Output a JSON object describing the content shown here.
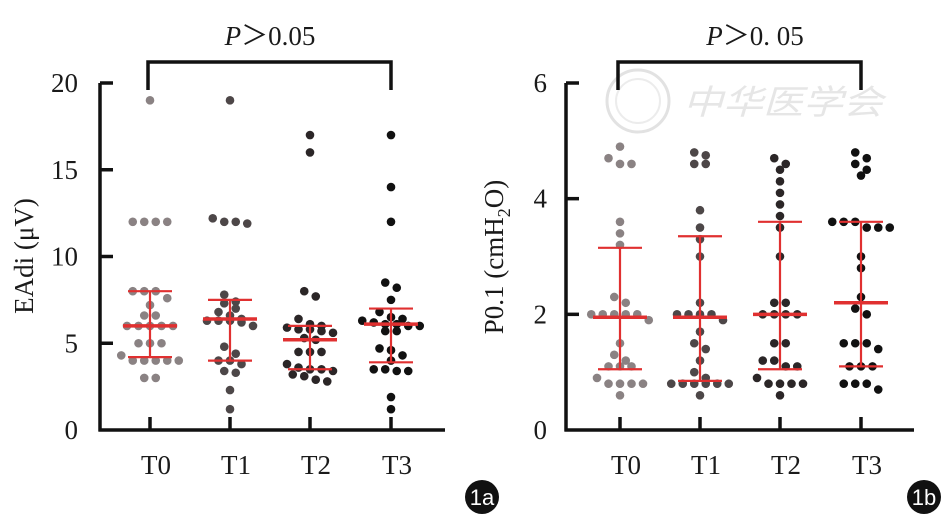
{
  "figure": {
    "watermark": "中华医学会",
    "panels": [
      "1a",
      "1b"
    ]
  },
  "colors": {
    "axis": "#111111",
    "summary": "#e03030",
    "groups": [
      "#8a8283",
      "#4d4748",
      "#2b2627",
      "#111111"
    ]
  },
  "chart_data": [
    {
      "id": "1a",
      "type": "scatter",
      "title": "",
      "badge": "1a",
      "xlabel": "",
      "ylabel": "EAdi (μV)",
      "ylim": [
        0,
        20
      ],
      "yticks": [
        "0",
        "5",
        "10",
        "15",
        "20"
      ],
      "ytick_values": [
        0,
        5,
        10,
        15,
        20
      ],
      "categories": [
        "T0",
        "T1",
        "T2",
        "T3"
      ],
      "annotation": {
        "text": "P＞0.05",
        "from": "T0",
        "to": "T3"
      },
      "series": [
        {
          "name": "T0",
          "values": [
            19,
            12,
            12,
            12,
            12,
            8.0,
            8.0,
            8.0,
            7.6,
            7.2,
            6.6,
            6.6,
            6.0,
            6.0,
            6.0,
            6.0,
            6.0,
            5.0,
            5.0,
            5.0,
            4.3,
            4.0,
            4.0,
            4.0,
            4.0,
            4.0,
            3.0,
            3.0
          ],
          "median": 6.0,
          "q1": 4.2,
          "q3": 8.0
        },
        {
          "name": "T1",
          "values": [
            19,
            12.2,
            12.0,
            12.0,
            11.9,
            7.8,
            7.4,
            7.3,
            7.0,
            6.8,
            6.6,
            6.4,
            6.3,
            6.3,
            6.3,
            6.2,
            6.0,
            4.8,
            4.4,
            4.0,
            4.0,
            3.8,
            3.4,
            3.3,
            2.3,
            1.2
          ],
          "median": 6.4,
          "q1": 4.0,
          "q3": 7.5
        },
        {
          "name": "T2",
          "values": [
            17,
            16,
            8.0,
            7.7,
            6.4,
            6.1,
            6.0,
            5.9,
            5.8,
            5.8,
            5.7,
            5.6,
            5.3,
            5.2,
            4.5,
            4.5,
            4.5,
            3.8,
            3.6,
            3.5,
            3.5,
            3.4,
            3.2,
            3.1,
            2.9,
            2.8
          ],
          "median": 5.2,
          "q1": 3.5,
          "q3": 6.0
        },
        {
          "name": "T3",
          "values": [
            17,
            14,
            12,
            8.5,
            8.2,
            7.5,
            6.8,
            6.5,
            6.4,
            6.3,
            6.2,
            6.1,
            6.1,
            6.0,
            6.0,
            5.7,
            5.7,
            4.7,
            4.6,
            4.3,
            4.0,
            3.5,
            3.5,
            3.4,
            3.4,
            1.9,
            1.2
          ],
          "median": 6.1,
          "q1": 3.9,
          "q3": 7.0
        }
      ]
    },
    {
      "id": "1b",
      "type": "scatter",
      "title": "",
      "badge": "1b",
      "xlabel": "",
      "ylabel": "P0.1 (cmH2O)",
      "ylabel_parts": {
        "pre": "P0.1 (cmH",
        "sub": "2",
        "post": "O)"
      },
      "ylim": [
        0,
        6
      ],
      "yticks": [
        "0",
        "2",
        "4",
        "6"
      ],
      "ytick_values": [
        0,
        2,
        4,
        6
      ],
      "categories": [
        "T0",
        "T1",
        "T2",
        "T3"
      ],
      "annotation": {
        "text": "P＞0. 05",
        "from": "T0",
        "to": "T3"
      },
      "series": [
        {
          "name": "T0",
          "values": [
            4.9,
            4.7,
            4.6,
            4.6,
            3.6,
            3.4,
            3.2,
            2.3,
            2.2,
            2.0,
            2.0,
            2.0,
            2.0,
            2.0,
            1.9,
            1.5,
            1.3,
            1.2,
            1.1,
            1.1,
            1.1,
            0.9,
            0.8,
            0.8,
            0.8,
            0.8,
            0.6
          ],
          "median": 1.95,
          "q1": 1.05,
          "q3": 3.15
        },
        {
          "name": "T1",
          "values": [
            4.8,
            4.75,
            4.6,
            4.6,
            3.8,
            3.5,
            3.3,
            3.0,
            2.2,
            2.0,
            2.0,
            2.0,
            2.0,
            1.9,
            1.7,
            1.5,
            1.4,
            1.2,
            1.0,
            0.9,
            0.8,
            0.8,
            0.8,
            0.8,
            0.8,
            0.8,
            0.6
          ],
          "median": 1.95,
          "q1": 0.85,
          "q3": 3.35
        },
        {
          "name": "T2",
          "values": [
            4.7,
            4.6,
            4.5,
            4.3,
            4.1,
            3.9,
            3.7,
            3.5,
            3.0,
            2.2,
            2.2,
            2.0,
            2.0,
            2.0,
            2.0,
            1.5,
            1.5,
            1.2,
            1.2,
            1.1,
            1.1,
            0.9,
            0.8,
            0.8,
            0.8,
            0.8,
            0.6
          ],
          "median": 2.0,
          "q1": 1.05,
          "q3": 3.6
        },
        {
          "name": "T3",
          "values": [
            4.8,
            4.7,
            4.6,
            4.5,
            4.4,
            3.6,
            3.6,
            3.6,
            3.5,
            3.5,
            3.5,
            3.0,
            2.8,
            2.3,
            2.1,
            2.0,
            1.5,
            1.5,
            1.5,
            1.4,
            1.1,
            1.1,
            1.1,
            0.8,
            0.8,
            0.8,
            0.7
          ],
          "median": 2.2,
          "q1": 1.1,
          "q3": 3.6
        }
      ]
    }
  ]
}
